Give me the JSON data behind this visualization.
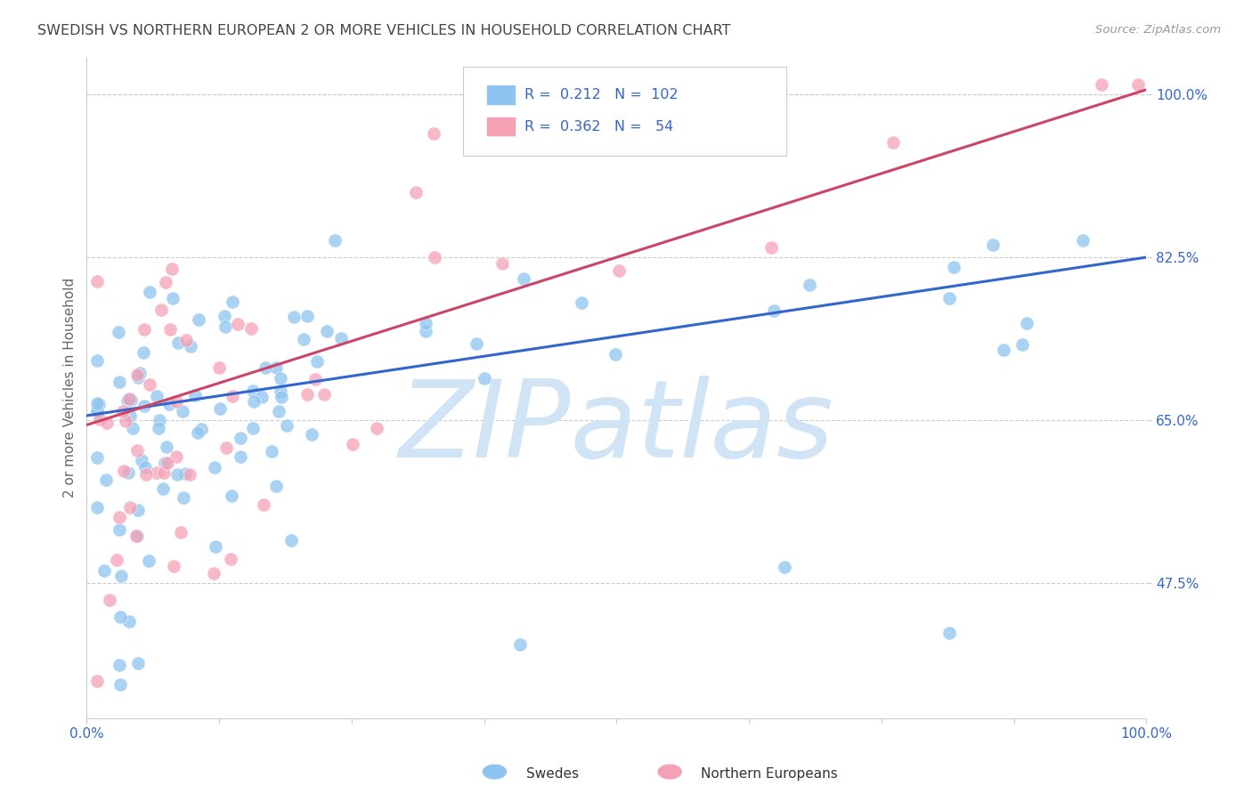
{
  "title": "SWEDISH VS NORTHERN EUROPEAN 2 OR MORE VEHICLES IN HOUSEHOLD CORRELATION CHART",
  "source": "Source: ZipAtlas.com",
  "ylabel": "2 or more Vehicles in Household",
  "xlim": [
    0.0,
    1.0
  ],
  "ylim": [
    0.33,
    1.04
  ],
  "blue_R": 0.212,
  "blue_N": 102,
  "pink_R": 0.362,
  "pink_N": 54,
  "blue_color": "#8ec4f0",
  "pink_color": "#f5a0b5",
  "blue_line_color": "#3366cc",
  "pink_line_color": "#cc4466",
  "legend_text_color": "#3366cc",
  "watermark_color": "#d0e4f5",
  "background_color": "#ffffff",
  "grid_color": "#cccccc",
  "title_color": "#444444",
  "ytick_color": "#3366cc",
  "xtick_color": "#3366cc",
  "blue_line_x0": 0.0,
  "blue_line_y0": 0.655,
  "blue_line_x1": 1.0,
  "blue_line_y1": 0.825,
  "pink_line_x0": 0.0,
  "pink_line_y0": 0.645,
  "pink_line_x1": 1.0,
  "pink_line_y1": 1.005
}
